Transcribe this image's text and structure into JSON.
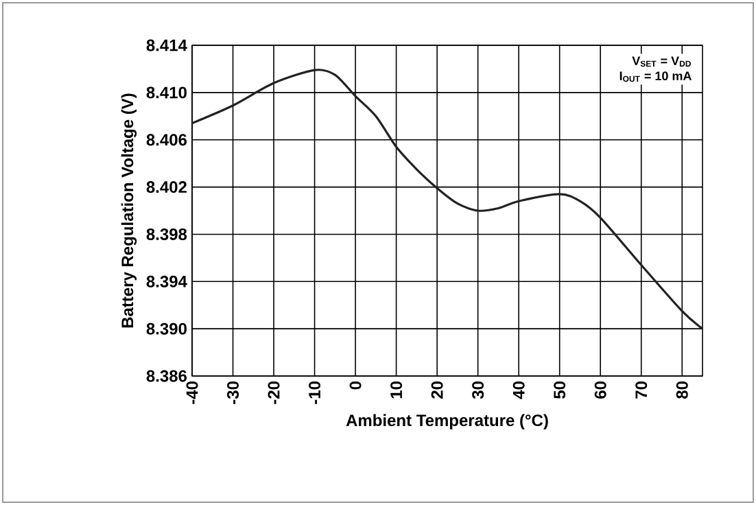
{
  "chart_data": {
    "type": "line",
    "xlabel": "Ambient Temperature (°C)",
    "ylabel": "Battery Regulation Voltage (V)",
    "annotations": [
      "V$_{SET}$ = V$_{DD}$",
      "I$_{OUT}$ = 10 mA"
    ],
    "x": [
      -40,
      -30,
      -20,
      -10,
      -5,
      0,
      5,
      10,
      15,
      20,
      25,
      30,
      35,
      40,
      50,
      55,
      60,
      70,
      80,
      85
    ],
    "series": [
      {
        "color": "#222222",
        "values": [
          8.4074,
          8.4089,
          8.4108,
          8.4119,
          8.4115,
          8.4097,
          8.408,
          8.4054,
          8.4035,
          8.4019,
          8.4006,
          8.4,
          8.4002,
          8.4008,
          8.4014,
          8.4008,
          8.3994,
          8.3954,
          8.3915,
          8.39
        ]
      }
    ],
    "xlim": [
      -40,
      85
    ],
    "ylim": [
      8.386,
      8.414
    ],
    "xticks": [
      -40,
      -30,
      -20,
      -10,
      0,
      10,
      20,
      30,
      40,
      50,
      60,
      70,
      80
    ],
    "yticks": [
      8.386,
      {
        "value": 8.39,
        "label": "8.390"
      },
      8.394,
      8.398,
      8.402,
      8.406,
      {
        "value": 8.41,
        "label": "8.410"
      },
      8.414
    ],
    "grid": true
  }
}
